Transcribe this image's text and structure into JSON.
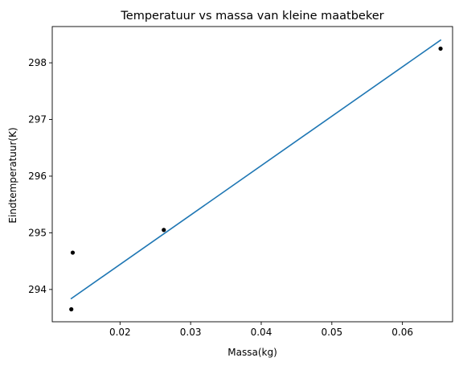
{
  "chart_data": {
    "type": "scatter",
    "title": "Temperatuur vs massa van kleine maatbeker",
    "xlabel": "Massa(kg)",
    "ylabel": "Eindtemperatuur(K)",
    "xlim": [
      0.0104,
      0.0671
    ],
    "ylim": [
      293.43,
      298.64
    ],
    "grid": false,
    "xticks": [
      0.02,
      0.03,
      0.04,
      0.05,
      0.06
    ],
    "xtick_labels": [
      "0.02",
      "0.03",
      "0.04",
      "0.05",
      "0.06"
    ],
    "yticks": [
      294,
      295,
      296,
      297,
      298
    ],
    "ytick_labels": [
      "294",
      "295",
      "296",
      "297",
      "298"
    ],
    "series": [
      {
        "kind": "scatter",
        "color": "#000000",
        "x": [
          0.0131,
          0.0133,
          0.0262,
          0.0654
        ],
        "y": [
          293.65,
          294.65,
          295.05,
          298.25
        ]
      },
      {
        "kind": "line",
        "color": "#1f77b4",
        "x": [
          0.0131,
          0.0654
        ],
        "y": [
          293.84,
          298.4
        ]
      }
    ]
  }
}
